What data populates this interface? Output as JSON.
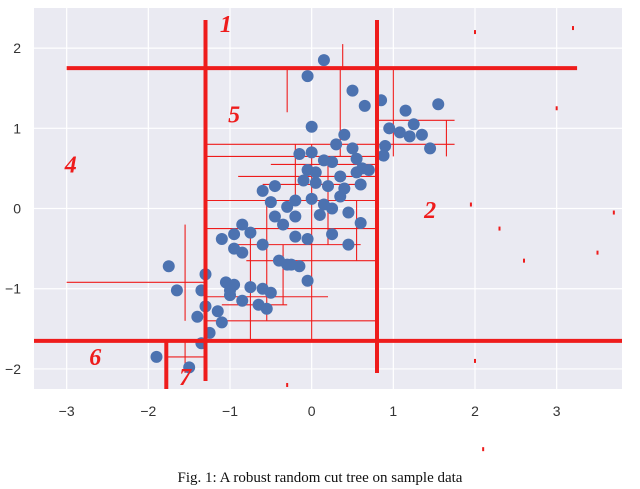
{
  "chart_data": {
    "type": "scatter",
    "title": "",
    "xlabel": "",
    "ylabel": "",
    "xlim": [
      -3.4,
      3.8
    ],
    "ylim": [
      -2.25,
      2.5
    ],
    "x_ticks": [
      "-3",
      "-2",
      "-1",
      "0",
      "1",
      "2",
      "3"
    ],
    "x_tick_values": [
      -3,
      -2,
      -1,
      0,
      1,
      2,
      3
    ],
    "y_ticks": [
      "2",
      "1",
      "0",
      "-1",
      "-2"
    ],
    "y_tick_values": [
      2,
      1,
      0,
      -1,
      -2
    ],
    "grid": true,
    "colors": {
      "background": "#eaeaf2",
      "grid": "#ffffff",
      "points": "#4c72b0",
      "cuts": "#ee1c1c"
    },
    "points": [
      [
        0.15,
        1.85
      ],
      [
        -0.05,
        1.65
      ],
      [
        0.5,
        1.47
      ],
      [
        0.65,
        1.28
      ],
      [
        0.85,
        1.35
      ],
      [
        1.15,
        1.22
      ],
      [
        1.55,
        1.3
      ],
      [
        1.25,
        1.05
      ],
      [
        1.35,
        0.92
      ],
      [
        0.95,
        1.0
      ],
      [
        1.08,
        0.95
      ],
      [
        1.2,
        0.9
      ],
      [
        1.45,
        0.75
      ],
      [
        0.9,
        0.78
      ],
      [
        0.88,
        0.66
      ],
      [
        0.0,
        1.02
      ],
      [
        0.4,
        0.92
      ],
      [
        0.3,
        0.8
      ],
      [
        0.5,
        0.75
      ],
      [
        0.55,
        0.62
      ],
      [
        0.62,
        0.5
      ],
      [
        0.7,
        0.48
      ],
      [
        -0.15,
        0.68
      ],
      [
        0.0,
        0.7
      ],
      [
        0.15,
        0.6
      ],
      [
        0.25,
        0.58
      ],
      [
        -0.05,
        0.48
      ],
      [
        0.05,
        0.45
      ],
      [
        0.35,
        0.4
      ],
      [
        0.55,
        0.45
      ],
      [
        -0.1,
        0.35
      ],
      [
        0.05,
        0.32
      ],
      [
        0.2,
        0.28
      ],
      [
        0.4,
        0.25
      ],
      [
        0.6,
        0.3
      ],
      [
        -0.45,
        0.28
      ],
      [
        -0.6,
        0.22
      ],
      [
        -0.5,
        0.08
      ],
      [
        -0.2,
        0.1
      ],
      [
        0.0,
        0.12
      ],
      [
        0.15,
        0.05
      ],
      [
        0.35,
        0.15
      ],
      [
        0.25,
        0.0
      ],
      [
        -0.3,
        0.02
      ],
      [
        -0.45,
        -0.1
      ],
      [
        -0.2,
        -0.1
      ],
      [
        0.1,
        -0.08
      ],
      [
        0.45,
        -0.05
      ],
      [
        0.6,
        -0.18
      ],
      [
        -0.35,
        -0.2
      ],
      [
        -0.2,
        -0.35
      ],
      [
        -0.05,
        -0.38
      ],
      [
        0.25,
        -0.32
      ],
      [
        0.45,
        -0.45
      ],
      [
        -0.85,
        -0.2
      ],
      [
        -0.75,
        -0.3
      ],
      [
        -0.95,
        -0.32
      ],
      [
        -1.1,
        -0.38
      ],
      [
        -0.6,
        -0.45
      ],
      [
        -0.95,
        -0.5
      ],
      [
        -0.85,
        -0.55
      ],
      [
        -0.3,
        -0.7
      ],
      [
        -0.15,
        -0.72
      ],
      [
        -0.4,
        -0.65
      ],
      [
        -0.05,
        -0.9
      ],
      [
        -1.3,
        -0.82
      ],
      [
        -1.05,
        -0.92
      ],
      [
        -0.95,
        -0.95
      ],
      [
        -0.75,
        -0.98
      ],
      [
        -1.0,
        -1.02
      ],
      [
        -0.6,
        -1.0
      ],
      [
        -0.5,
        -1.05
      ],
      [
        -1.0,
        -1.08
      ],
      [
        -0.85,
        -1.15
      ],
      [
        -0.65,
        -1.2
      ],
      [
        -0.55,
        -1.25
      ],
      [
        -1.3,
        -1.22
      ],
      [
        -1.15,
        -1.28
      ],
      [
        -1.4,
        -1.35
      ],
      [
        -1.1,
        -1.42
      ],
      [
        -1.25,
        -1.55
      ],
      [
        -1.75,
        -0.72
      ],
      [
        -1.65,
        -1.02
      ],
      [
        -1.9,
        -1.85
      ],
      [
        -1.35,
        -1.68
      ],
      [
        -1.5,
        -1.98
      ],
      [
        -1.35,
        -1.02
      ],
      [
        -0.25,
        -0.7
      ]
    ],
    "major_cuts": [
      {
        "orientation": "vertical",
        "at": -1.3,
        "from": -2.15,
        "to": 2.35
      },
      {
        "orientation": "vertical",
        "at": 0.8,
        "from": -2.05,
        "to": 2.35
      },
      {
        "orientation": "horizontal",
        "at": 1.75,
        "from": -3.0,
        "to": 3.25
      },
      {
        "orientation": "horizontal",
        "at": -1.65,
        "from": -3.4,
        "to": 3.8
      },
      {
        "orientation": "vertical",
        "at": -1.78,
        "from": -2.25,
        "to": -1.65
      }
    ],
    "minor_cuts": [
      {
        "orientation": "horizontal",
        "at": 0.8,
        "from": -1.3,
        "to": 0.8
      },
      {
        "orientation": "horizontal",
        "at": 0.65,
        "from": -1.3,
        "to": 0.8
      },
      {
        "orientation": "horizontal",
        "at": 0.55,
        "from": -0.5,
        "to": 0.8
      },
      {
        "orientation": "horizontal",
        "at": 0.4,
        "from": -0.9,
        "to": 0.8
      },
      {
        "orientation": "horizontal",
        "at": 0.3,
        "from": -0.6,
        "to": 0.6
      },
      {
        "orientation": "horizontal",
        "at": 0.1,
        "from": -1.3,
        "to": 0.8
      },
      {
        "orientation": "horizontal",
        "at": -0.25,
        "from": -1.3,
        "to": 0.8
      },
      {
        "orientation": "horizontal",
        "at": -0.45,
        "from": -1.0,
        "to": 0.6
      },
      {
        "orientation": "horizontal",
        "at": -0.65,
        "from": -0.8,
        "to": 0.8
      },
      {
        "orientation": "horizontal",
        "at": -0.92,
        "from": -3.0,
        "to": -1.3
      },
      {
        "orientation": "horizontal",
        "at": -1.1,
        "from": -1.3,
        "to": 0.2
      },
      {
        "orientation": "horizontal",
        "at": -1.2,
        "from": -1.1,
        "to": -0.3
      },
      {
        "orientation": "horizontal",
        "at": -1.4,
        "from": -1.3,
        "to": 0.8
      },
      {
        "orientation": "horizontal",
        "at": -1.85,
        "from": -1.78,
        "to": -1.3
      },
      {
        "orientation": "horizontal",
        "at": 1.1,
        "from": 0.8,
        "to": 1.75
      },
      {
        "orientation": "horizontal",
        "at": 0.8,
        "from": 0.8,
        "to": 1.75
      },
      {
        "orientation": "vertical",
        "at": 0.35,
        "from": 0.65,
        "to": 1.75
      },
      {
        "orientation": "vertical",
        "at": 0.0,
        "from": -1.65,
        "to": 0.8
      },
      {
        "orientation": "vertical",
        "at": -0.2,
        "from": 0.1,
        "to": 0.8
      },
      {
        "orientation": "vertical",
        "at": 0.2,
        "from": -0.45,
        "to": 0.55
      },
      {
        "orientation": "vertical",
        "at": -0.55,
        "from": -1.4,
        "to": 0.1
      },
      {
        "orientation": "vertical",
        "at": -0.75,
        "from": -1.65,
        "to": -0.25
      },
      {
        "orientation": "vertical",
        "at": -0.35,
        "from": -1.2,
        "to": -0.45
      },
      {
        "orientation": "vertical",
        "at": -1.55,
        "from": -1.4,
        "to": -0.2
      },
      {
        "orientation": "vertical",
        "at": 0.55,
        "from": -0.65,
        "to": 0.1
      },
      {
        "orientation": "vertical",
        "at": 1.0,
        "from": 0.65,
        "to": 1.75
      },
      {
        "orientation": "vertical",
        "at": 1.65,
        "from": 0.65,
        "to": 1.1
      },
      {
        "orientation": "vertical",
        "at": -1.55,
        "from": -2.05,
        "to": -1.65
      },
      {
        "orientation": "vertical",
        "at": -0.3,
        "from": 1.2,
        "to": 1.75
      },
      {
        "orientation": "vertical",
        "at": 0.38,
        "from": 1.75,
        "to": 2.05
      }
    ],
    "stray_marks": [
      [
        2.0,
        -1.9
      ],
      [
        3.0,
        1.25
      ],
      [
        1.95,
        0.05
      ],
      [
        -0.3,
        -2.2
      ],
      [
        2.6,
        -0.65
      ],
      [
        3.7,
        -0.05
      ],
      [
        2.3,
        -0.25
      ],
      [
        3.5,
        -0.55
      ],
      [
        3.2,
        2.25
      ],
      [
        2.0,
        2.2
      ],
      [
        2.1,
        -3.0
      ]
    ],
    "annotations": [
      {
        "text": "1",
        "x": -1.05,
        "y": 2.2
      },
      {
        "text": "5",
        "x": -0.95,
        "y": 1.07
      },
      {
        "text": "4",
        "x": -2.95,
        "y": 0.45
      },
      {
        "text": "2",
        "x": 1.45,
        "y": -0.12
      },
      {
        "text": "6",
        "x": -2.65,
        "y": -1.95
      },
      {
        "text": "7",
        "x": -1.55,
        "y": -2.2
      }
    ]
  },
  "caption": "Fig. 1: A robust random cut tree on sample data"
}
